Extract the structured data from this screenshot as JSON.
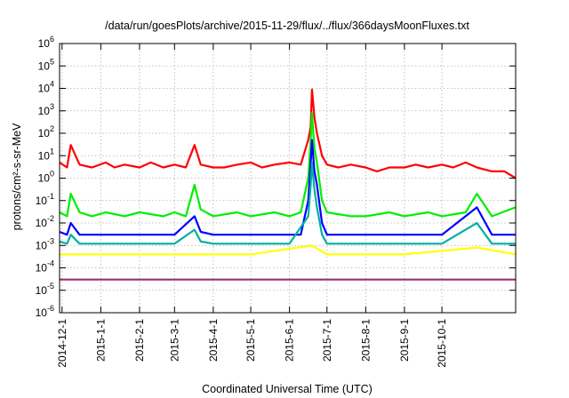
{
  "chart_data": {
    "type": "line",
    "title": "/data/run/goesPlots/archive/2015-11-29/flux/../flux/366daysMoonFluxes.txt",
    "xlabel": "Coordinated Universal Time (UTC)",
    "ylabel": "protons/cm²-s-sr-MeV",
    "yscale": "log",
    "ylim": [
      1e-06,
      1000000.0
    ],
    "xlim": [
      "2014-11-29",
      "2015-11-29"
    ],
    "y_ticks": [
      {
        "value": 1e-06,
        "base": "10",
        "exp": "-6"
      },
      {
        "value": 1e-05,
        "base": "10",
        "exp": "-5"
      },
      {
        "value": 0.0001,
        "base": "10",
        "exp": "-4"
      },
      {
        "value": 0.001,
        "base": "10",
        "exp": "-3"
      },
      {
        "value": 0.01,
        "base": "10",
        "exp": "-2"
      },
      {
        "value": 0.1,
        "base": "10",
        "exp": "-1"
      },
      {
        "value": 1,
        "base": "10",
        "exp": "0"
      },
      {
        "value": 10,
        "base": "10",
        "exp": "1"
      },
      {
        "value": 100,
        "base": "10",
        "exp": "2"
      },
      {
        "value": 1000,
        "base": "10",
        "exp": "3"
      },
      {
        "value": 10000,
        "base": "10",
        "exp": "4"
      },
      {
        "value": 100000,
        "base": "10",
        "exp": "5"
      },
      {
        "value": 1000000,
        "base": "10",
        "exp": "6"
      }
    ],
    "x_ticks": [
      "2014-12-1",
      "2015-1-1",
      "2015-2-1",
      "2015-3-1",
      "2015-4-1",
      "2015-5-1",
      "2015-6-1",
      "2015-7-1",
      "2015-8-1",
      "2015-9-1",
      "2015-10-1"
    ],
    "grid": true,
    "series": [
      {
        "color": "#ff0000",
        "x": [
          "2014-11-29",
          "2014-12-05",
          "2014-12-08",
          "2014-12-15",
          "2014-12-25",
          "2015-01-05",
          "2015-01-12",
          "2015-01-20",
          "2015-02-01",
          "2015-02-10",
          "2015-02-20",
          "2015-03-01",
          "2015-03-10",
          "2015-03-17",
          "2015-03-22",
          "2015-04-01",
          "2015-04-10",
          "2015-04-20",
          "2015-05-01",
          "2015-05-10",
          "2015-05-20",
          "2015-06-01",
          "2015-06-10",
          "2015-06-16",
          "2015-06-18",
          "2015-06-19",
          "2015-06-21",
          "2015-06-23",
          "2015-06-27",
          "2015-07-01",
          "2015-07-10",
          "2015-07-20",
          "2015-08-01",
          "2015-08-10",
          "2015-08-20",
          "2015-09-01",
          "2015-09-10",
          "2015-09-20",
          "2015-10-01",
          "2015-10-10",
          "2015-10-20",
          "2015-10-29",
          "2015-11-10",
          "2015-11-20",
          "2015-11-29"
        ],
        "y": [
          5,
          3,
          30,
          4,
          3,
          5,
          3,
          4,
          3,
          5,
          3,
          4,
          3,
          30,
          4,
          3,
          3,
          4,
          5,
          3,
          4,
          5,
          4,
          50,
          200,
          9000,
          500,
          100,
          10,
          4,
          3,
          4,
          3,
          2,
          3,
          3,
          4,
          3,
          4,
          3,
          5,
          3,
          2,
          2,
          1
        ]
      },
      {
        "color": "#00ee00",
        "x": [
          "2014-11-29",
          "2014-12-05",
          "2014-12-08",
          "2014-12-15",
          "2014-12-25",
          "2015-01-05",
          "2015-01-20",
          "2015-02-01",
          "2015-02-20",
          "2015-03-01",
          "2015-03-10",
          "2015-03-17",
          "2015-03-22",
          "2015-04-01",
          "2015-04-20",
          "2015-05-01",
          "2015-05-20",
          "2015-06-01",
          "2015-06-10",
          "2015-06-16",
          "2015-06-18",
          "2015-06-19",
          "2015-06-21",
          "2015-06-23",
          "2015-06-27",
          "2015-07-01",
          "2015-07-20",
          "2015-08-01",
          "2015-08-20",
          "2015-09-01",
          "2015-09-20",
          "2015-10-01",
          "2015-10-20",
          "2015-10-29",
          "2015-11-10",
          "2015-11-29"
        ],
        "y": [
          0.03,
          0.02,
          0.2,
          0.03,
          0.02,
          0.03,
          0.02,
          0.03,
          0.02,
          0.03,
          0.02,
          0.5,
          0.04,
          0.02,
          0.03,
          0.02,
          0.03,
          0.02,
          0.03,
          1,
          50,
          800,
          20,
          5,
          0.1,
          0.03,
          0.02,
          0.02,
          0.03,
          0.02,
          0.03,
          0.02,
          0.03,
          0.2,
          0.02,
          0.05
        ]
      },
      {
        "color": "#0000ff",
        "x": [
          "2014-11-29",
          "2014-12-05",
          "2014-12-08",
          "2014-12-15",
          "2015-01-05",
          "2015-02-01",
          "2015-03-01",
          "2015-03-17",
          "2015-03-22",
          "2015-04-01",
          "2015-05-01",
          "2015-06-01",
          "2015-06-10",
          "2015-06-16",
          "2015-06-18",
          "2015-06-19",
          "2015-06-21",
          "2015-06-23",
          "2015-06-27",
          "2015-07-01",
          "2015-08-01",
          "2015-09-01",
          "2015-10-01",
          "2015-10-29",
          "2015-11-10",
          "2015-11-29"
        ],
        "y": [
          0.004,
          0.003,
          0.01,
          0.003,
          0.003,
          0.003,
          0.003,
          0.02,
          0.004,
          0.003,
          0.003,
          0.003,
          0.003,
          0.1,
          5,
          50,
          2,
          0.5,
          0.01,
          0.003,
          0.003,
          0.003,
          0.003,
          0.05,
          0.003,
          0.003
        ]
      },
      {
        "color": "#00b0a0",
        "x": [
          "2014-11-29",
          "2014-12-05",
          "2014-12-08",
          "2014-12-15",
          "2015-01-05",
          "2015-02-01",
          "2015-03-01",
          "2015-03-17",
          "2015-03-22",
          "2015-04-01",
          "2015-05-01",
          "2015-06-01",
          "2015-06-16",
          "2015-06-18",
          "2015-06-19",
          "2015-06-21",
          "2015-06-23",
          "2015-06-27",
          "2015-07-01",
          "2015-08-01",
          "2015-09-01",
          "2015-10-01",
          "2015-10-29",
          "2015-11-10",
          "2015-11-29"
        ],
        "y": [
          0.0015,
          0.0012,
          0.003,
          0.0012,
          0.0012,
          0.0012,
          0.0012,
          0.005,
          0.0015,
          0.0012,
          0.0012,
          0.0012,
          0.02,
          0.5,
          5,
          0.3,
          0.05,
          0.003,
          0.0012,
          0.0012,
          0.0012,
          0.0012,
          0.01,
          0.0012,
          0.0012
        ]
      },
      {
        "color": "#ffff00",
        "x": [
          "2014-11-29",
          "2015-01-01",
          "2015-03-01",
          "2015-05-01",
          "2015-06-19",
          "2015-07-01",
          "2015-09-01",
          "2015-10-29",
          "2015-11-29"
        ],
        "y": [
          0.0004,
          0.0004,
          0.0004,
          0.0004,
          0.001,
          0.0004,
          0.0004,
          0.0008,
          0.0004
        ]
      },
      {
        "color": "#993366",
        "x": [
          "2014-11-29",
          "2014-12-10",
          "2015-01-01",
          "2015-02-01",
          "2015-03-01",
          "2015-04-01",
          "2015-05-01",
          "2015-06-01",
          "2015-07-01",
          "2015-08-01",
          "2015-09-01",
          "2015-10-01",
          "2015-11-01",
          "2015-11-29"
        ],
        "y": [
          3e-05,
          3e-05,
          3e-05,
          3e-05,
          3e-05,
          3e-05,
          3e-05,
          3e-05,
          3e-05,
          3e-05,
          3e-05,
          3e-05,
          3e-05,
          3e-05
        ]
      }
    ]
  }
}
